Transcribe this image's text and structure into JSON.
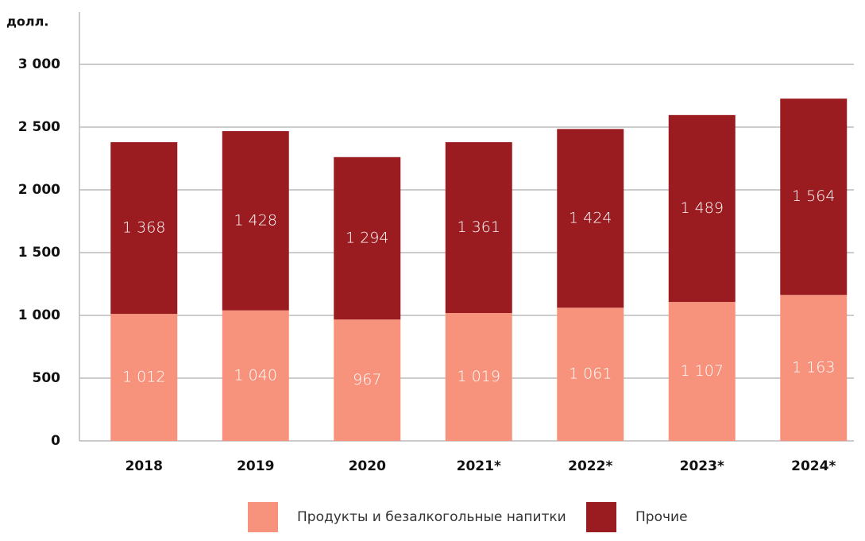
{
  "chart_data": {
    "type": "stacked_bar",
    "y_label": "долл.",
    "categories": [
      "2018",
      "2019",
      "2020",
      "2021*",
      "2022*",
      "2023*",
      "2024*"
    ],
    "series": [
      {
        "name": "Продукты и безалкогольные напитки",
        "color": "#f7937c",
        "values": [
          1012,
          1040,
          967,
          1019,
          1061,
          1107,
          1163
        ],
        "value_labels": [
          "1 012",
          "1 040",
          "967",
          "1 019",
          "1 061",
          "1 107",
          "1 163"
        ]
      },
      {
        "name": "Прочие",
        "color": "#9a1b20",
        "values": [
          1368,
          1428,
          1294,
          1361,
          1424,
          1489,
          1564
        ],
        "value_labels": [
          "1 368",
          "1 428",
          "1 294",
          "1 361",
          "1 424",
          "1 489",
          "1 564"
        ]
      }
    ],
    "ylim": [
      0,
      3000
    ],
    "yticks": [
      0,
      500,
      {
        "value": 1000,
        "label": "1 000"
      },
      {
        "value": 1500,
        "label": "1 500"
      },
      {
        "value": 2000,
        "label": "2 000"
      },
      {
        "value": 2500,
        "label": "2 500"
      },
      {
        "value": 3000,
        "label": "3 000"
      }
    ],
    "grid": true
  }
}
